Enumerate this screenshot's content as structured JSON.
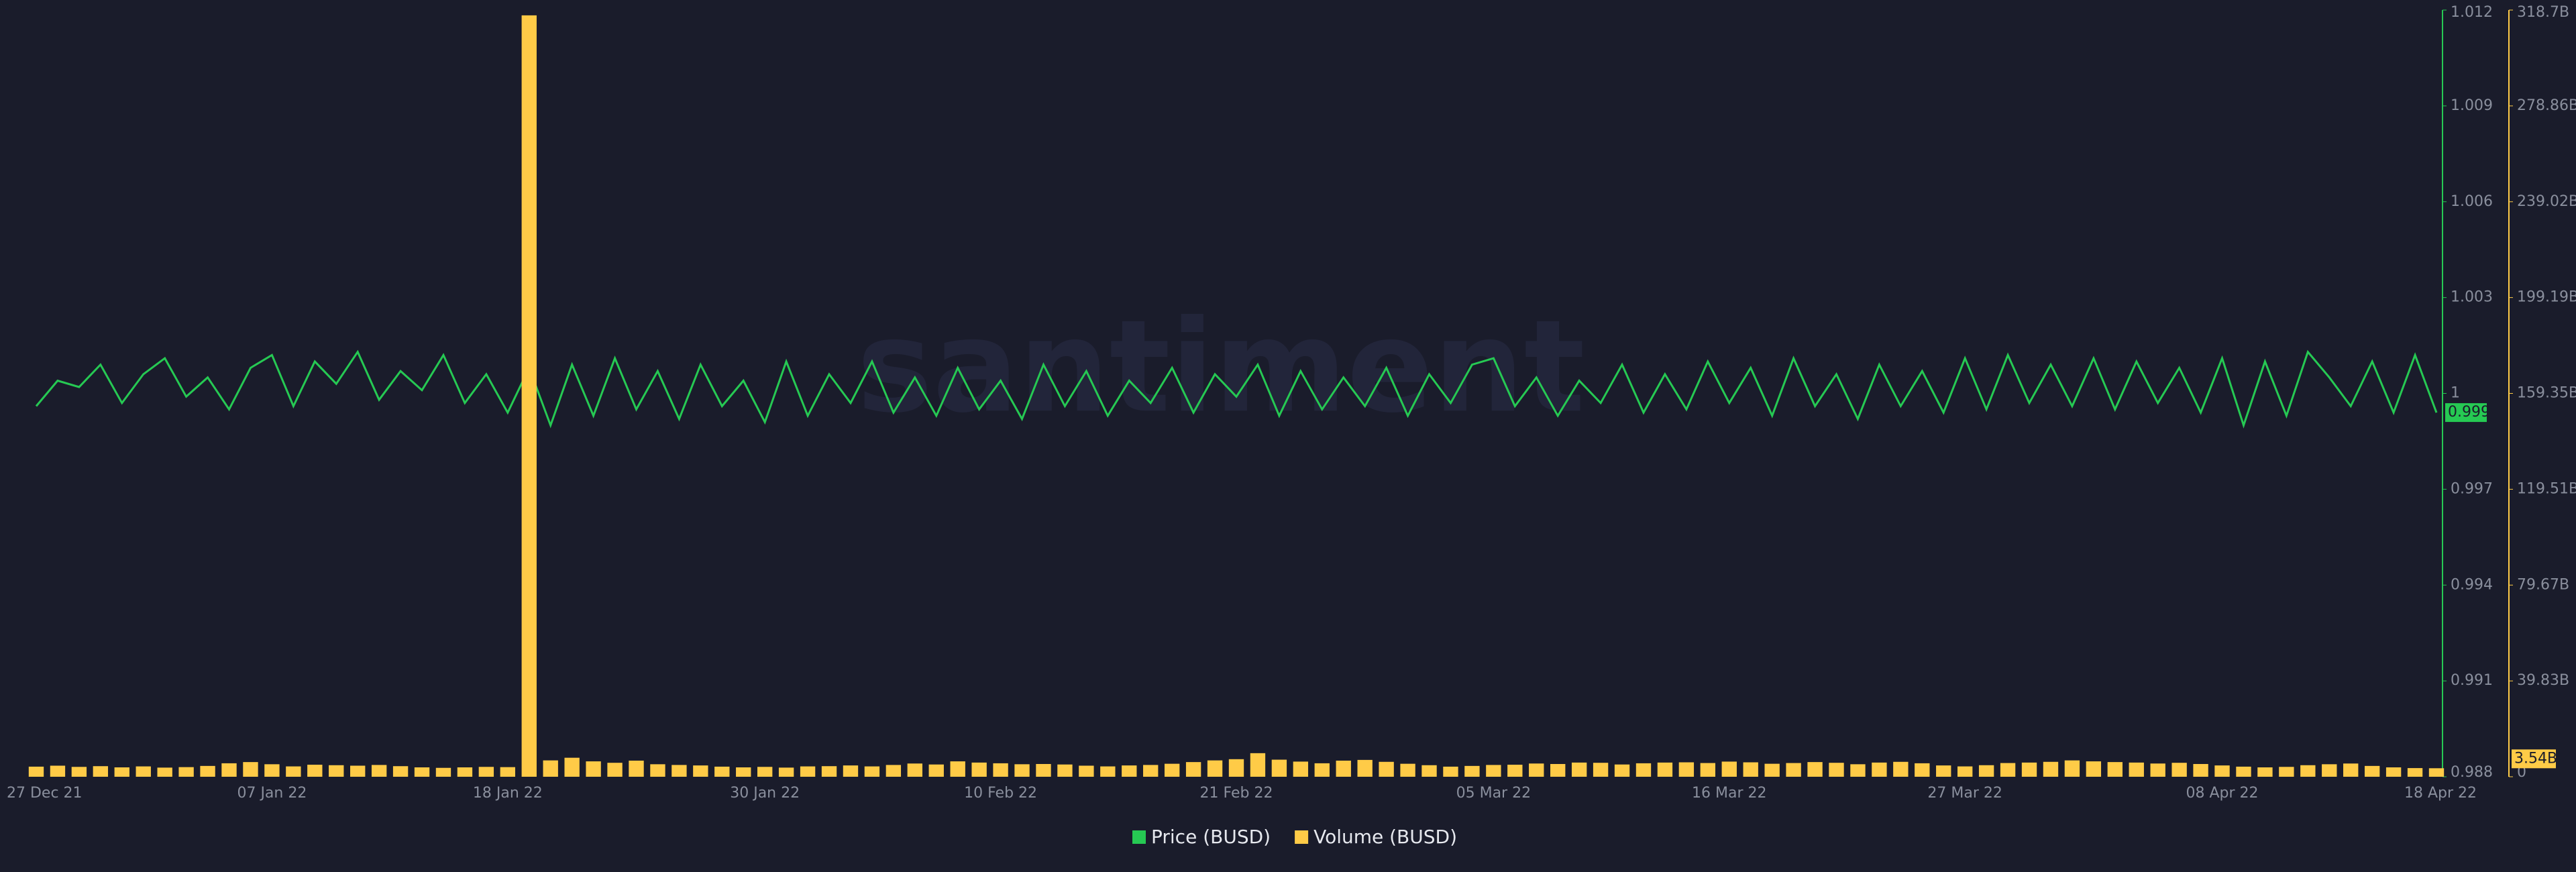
{
  "chart_data": {
    "type": "line-bar",
    "watermark": "santiment",
    "categories": [
      "27 Dec 21",
      null,
      null,
      null,
      null,
      null,
      null,
      null,
      null,
      null,
      null,
      "07 Jan 22",
      null,
      null,
      null,
      null,
      null,
      null,
      null,
      null,
      null,
      null,
      "18 Jan 22",
      null,
      null,
      null,
      null,
      null,
      null,
      null,
      null,
      null,
      null,
      null,
      "30 Jan 22",
      null,
      null,
      null,
      null,
      null,
      null,
      null,
      null,
      null,
      null,
      "10 Feb 22",
      null,
      null,
      null,
      null,
      null,
      null,
      null,
      null,
      null,
      null,
      "21 Feb 22",
      null,
      null,
      null,
      null,
      null,
      null,
      null,
      null,
      null,
      null,
      null,
      "05 Mar 22",
      null,
      null,
      null,
      null,
      null,
      null,
      null,
      null,
      null,
      null,
      "16 Mar 22",
      null,
      null,
      null,
      null,
      null,
      null,
      null,
      null,
      null,
      null,
      "27 Mar 22",
      null,
      null,
      null,
      null,
      null,
      null,
      null,
      null,
      null,
      null,
      null,
      "08 Apr 22",
      null,
      null,
      null,
      null,
      null,
      null,
      null,
      null,
      null,
      "18 Apr 22"
    ],
    "series": [
      {
        "name": "Price (BUSD)",
        "color": "#26c953",
        "axis": "y",
        "last_value_label": "0.999",
        "values": [
          0.9996,
          1.0004,
          1.0002,
          1.0009,
          0.9997,
          1.0006,
          1.0011,
          0.9999,
          1.0005,
          0.9995,
          1.0008,
          1.0012,
          0.9996,
          1.001,
          1.0003,
          1.0013,
          0.9998,
          1.0007,
          1.0001,
          1.0012,
          0.9997,
          1.0006,
          0.9994,
          1.0008,
          0.999,
          1.0009,
          0.9993,
          1.0011,
          0.9995,
          1.0007,
          0.9992,
          1.0009,
          0.9996,
          1.0004,
          0.9991,
          1.001,
          0.9993,
          1.0006,
          0.9997,
          1.001,
          0.9994,
          1.0005,
          0.9993,
          1.0008,
          0.9995,
          1.0004,
          0.9992,
          1.0009,
          0.9996,
          1.0007,
          0.9993,
          1.0004,
          0.9997,
          1.0008,
          0.9994,
          1.0006,
          0.9999,
          1.0009,
          0.9993,
          1.0007,
          0.9995,
          1.0005,
          0.9996,
          1.0008,
          0.9993,
          1.0006,
          0.9997,
          1.0009,
          1.0011,
          0.9996,
          1.0005,
          0.9993,
          1.0004,
          0.9997,
          1.0009,
          0.9994,
          1.0006,
          0.9995,
          1.001,
          0.9997,
          1.0008,
          0.9993,
          1.0011,
          0.9996,
          1.0006,
          0.9992,
          1.0009,
          0.9996,
          1.0007,
          0.9994,
          1.0011,
          0.9995,
          1.0012,
          0.9997,
          1.0009,
          0.9996,
          1.0011,
          0.9995,
          1.001,
          0.9997,
          1.0008,
          0.9994,
          1.0011,
          0.999,
          1.001,
          0.9993,
          1.0013,
          1.0005,
          0.9996,
          1.001,
          0.9994,
          1.0012,
          0.9994
        ]
      },
      {
        "name": "Volume (BUSD)",
        "color": "#ffcb47",
        "axis": "y2",
        "last_value_label": "3.54B",
        "values": [
          4.2,
          4.6,
          4.1,
          4.4,
          3.9,
          4.3,
          3.8,
          4.0,
          4.5,
          5.6,
          6.1,
          5.2,
          4.3,
          5.0,
          4.8,
          4.6,
          4.9,
          4.4,
          3.9,
          3.7,
          3.9,
          4.1,
          4.0,
          316.5,
          6.8,
          7.9,
          6.4,
          5.8,
          6.7,
          5.2,
          4.9,
          4.7,
          4.2,
          3.9,
          4.1,
          3.8,
          4.3,
          4.4,
          4.7,
          4.3,
          4.9,
          5.5,
          5.1,
          6.4,
          5.9,
          5.6,
          5.2,
          5.3,
          5.1,
          4.6,
          4.3,
          4.7,
          4.9,
          5.4,
          6.1,
          6.8,
          7.3,
          9.8,
          7.1,
          6.3,
          5.6,
          6.7,
          7.0,
          6.2,
          5.4,
          4.8,
          4.2,
          4.5,
          4.9,
          5.0,
          5.5,
          5.3,
          5.9,
          5.8,
          5.1,
          5.6,
          5.9,
          6.0,
          5.7,
          6.3,
          6.0,
          5.4,
          5.7,
          6.1,
          5.8,
          5.2,
          5.9,
          6.2,
          5.6,
          4.7,
          4.3,
          4.8,
          5.7,
          5.9,
          6.2,
          6.8,
          6.4,
          6.1,
          5.9,
          5.5,
          5.8,
          5.3,
          4.7,
          4.2,
          3.9,
          4.1,
          4.8,
          5.2,
          5.5,
          4.5,
          3.9,
          3.6,
          3.54
        ]
      }
    ],
    "ylim": [
      0.988,
      1.012
    ],
    "yticks": [
      0.988,
      0.991,
      0.994,
      0.997,
      1,
      1.003,
      1.006,
      1.009,
      1.012
    ],
    "y2lim": [
      0,
      318.7
    ],
    "y2ticks": [
      0,
      {
        "value": 39.83,
        "label": "39.83B"
      },
      {
        "value": 79.67,
        "label": "79.67B"
      },
      {
        "value": 119.51,
        "label": "119.51B"
      },
      {
        "value": 159.35,
        "label": "159.35B"
      },
      {
        "value": 199.19,
        "label": "199.19B"
      },
      {
        "value": 239.02,
        "label": "239.02B"
      },
      {
        "value": 278.86,
        "label": "278.86B"
      },
      {
        "value": 318.7,
        "label": "318.7B"
      }
    ],
    "legend": "bottom"
  }
}
